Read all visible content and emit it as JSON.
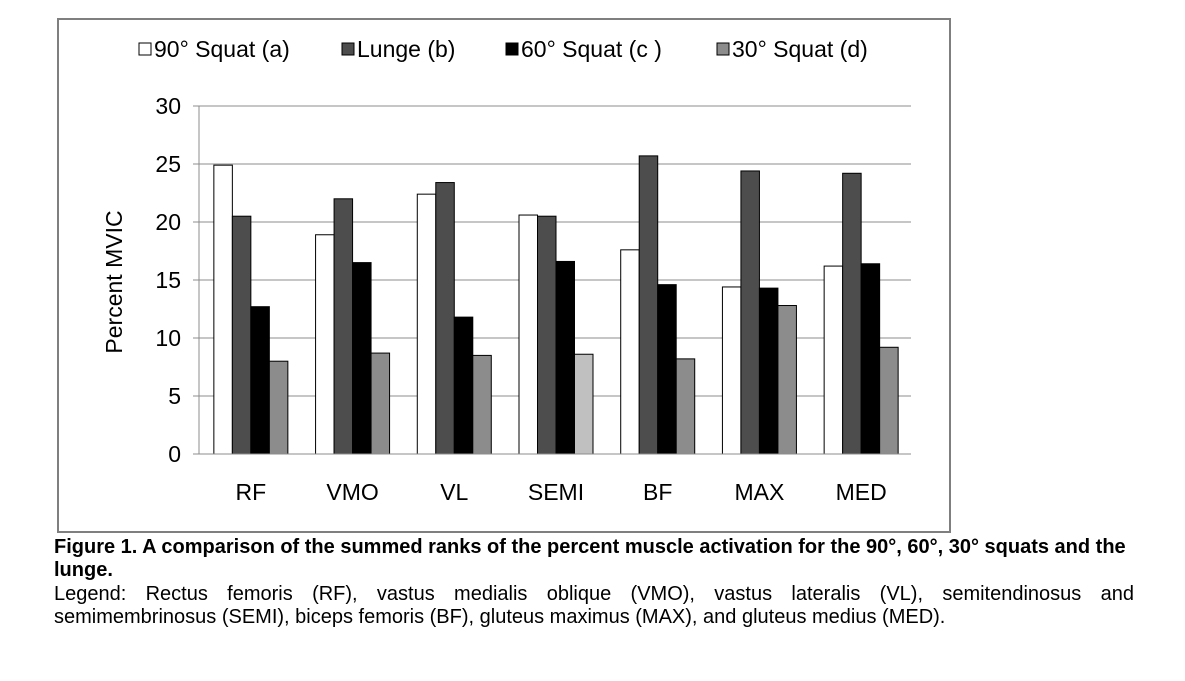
{
  "chart_data": {
    "type": "bar",
    "categories": [
      "RF",
      "VMO",
      "VL",
      "SEMI",
      "BF",
      "MAX",
      "MED"
    ],
    "series": [
      {
        "name": "90° Squat (a)",
        "values": [
          24.9,
          18.9,
          22.4,
          20.6,
          17.6,
          14.4,
          16.2
        ],
        "color": "#ffffff"
      },
      {
        "name": "Lunge (b)",
        "values": [
          20.5,
          22.0,
          23.4,
          20.5,
          25.7,
          24.4,
          24.2
        ],
        "color": "#4d4d4d"
      },
      {
        "name": "60° Squat (c )",
        "values": [
          12.7,
          16.5,
          11.8,
          16.6,
          14.6,
          14.3,
          16.4
        ],
        "color": "#000000"
      },
      {
        "name": "30° Squat (d)",
        "values": [
          8.0,
          8.7,
          8.5,
          8.6,
          8.2,
          12.8,
          9.2
        ],
        "color": "#8c8c8c"
      }
    ],
    "highlight_color": "#c0c0c0",
    "title": "",
    "xlabel": "",
    "ylabel": "Percent MVIC",
    "ylim": [
      0,
      30
    ],
    "yticks": [
      0,
      5,
      10,
      15,
      20,
      25,
      30
    ],
    "grid": true,
    "legend_position": "top"
  },
  "caption": {
    "title": "Figure 1. A comparison of the summed ranks of the percent muscle activation for the 90°, 60°, 30° squats and the lunge.",
    "legend": "Legend: Rectus femoris (RF), vastus medialis oblique (VMO), vastus lateralis (VL), semitendinosus and semimembrinosus (SEMI), biceps femoris (BF), gluteus maximus (MAX), and gluteus medius (MED)."
  }
}
